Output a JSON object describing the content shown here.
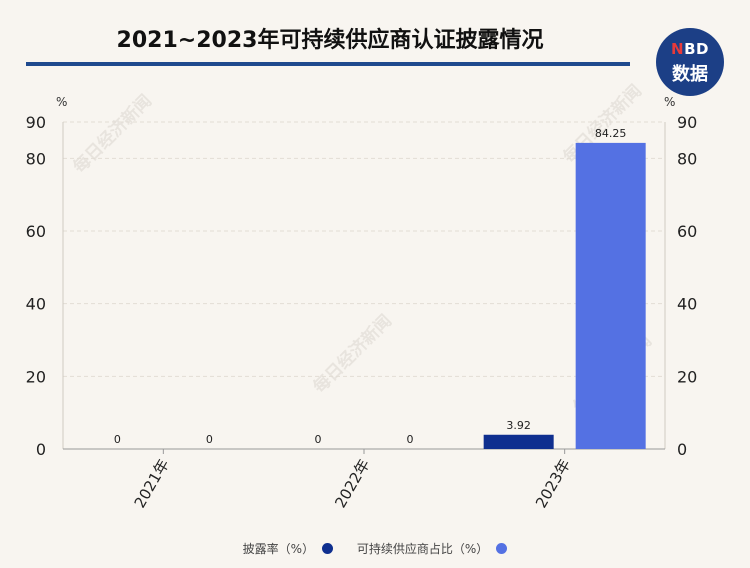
{
  "header": {
    "title": "2021~2023年可持续供应商认证披露情况",
    "logo_top": "NBD",
    "logo_bottom": "数据"
  },
  "watermark": "每日经济新闻",
  "chart_data": {
    "type": "bar",
    "title": "2021~2023年可持续供应商认证披露情况",
    "categories": [
      "2021年",
      "2022年",
      "2023年"
    ],
    "series": [
      {
        "name": "披露率（%）",
        "values": [
          0,
          0,
          3.92
        ],
        "color": "#0f2f8f",
        "labels": [
          "0",
          "0",
          "3.92"
        ]
      },
      {
        "name": "可持续供应商占比（%）",
        "values": [
          0,
          0,
          84.25
        ],
        "color": "#5471e3",
        "labels": [
          "0",
          "0",
          "84.25"
        ]
      }
    ],
    "ylim": [
      0,
      90
    ],
    "yticks": [
      0,
      20,
      40,
      60,
      80,
      90
    ],
    "ylabel_left": "%",
    "ylabel_right": "%",
    "grid": true,
    "legend": "bottom"
  },
  "colors": {
    "series1": "#0f2f8f",
    "series2": "#5471e3",
    "rule": "#1f4a8e"
  }
}
